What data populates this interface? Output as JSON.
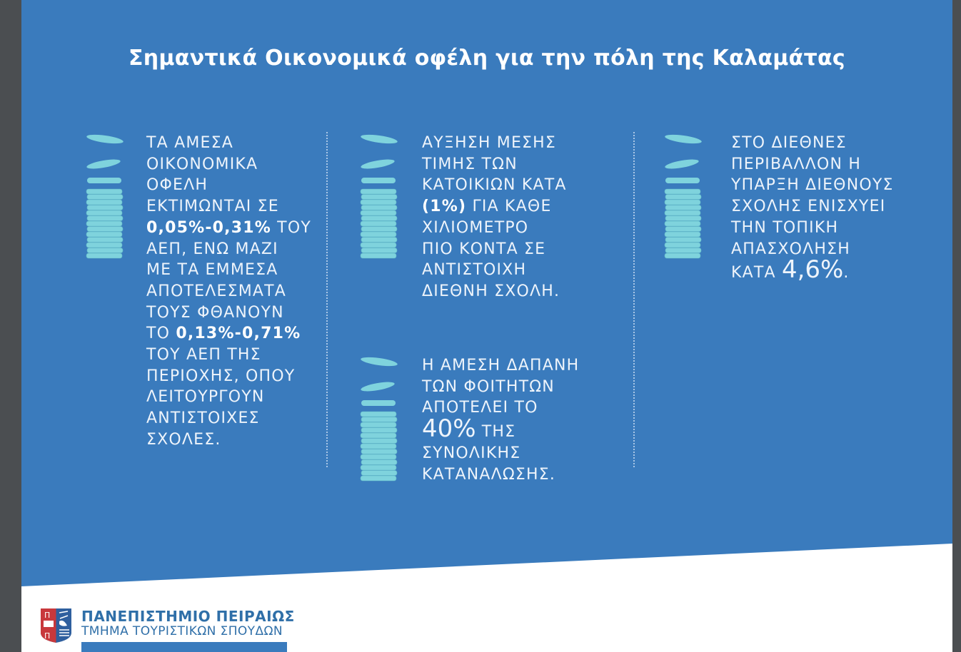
{
  "title": "Σημαντικά Οικονομικά οφέλη για την πόλη της Καλαμάτας",
  "colors": {
    "background_blue": "#3a7bbd",
    "coin": "#7fd3dd",
    "logo_red": "#c8383c",
    "logo_blue": "#2f5f9e"
  },
  "blocks": [
    {
      "icon": "coin-stack-icon",
      "lines": [
        [
          {
            "t": "ΤΑ ΑΜΕΣΑ"
          }
        ],
        [
          {
            "t": "ΟΙΚΟΝΟΜΙΚΑ"
          }
        ],
        [
          {
            "t": "ΟΦΕΛΗ"
          }
        ],
        [
          {
            "t": "ΕΚΤΙΜΩΝΤΑΙ ΣΕ"
          }
        ],
        [
          {
            "t": "0,05%-0,31%",
            "b": true
          },
          {
            "t": " ΤΟΥ"
          }
        ],
        [
          {
            "t": "ΑΕΠ, ΕΝΩ ΜΑΖΙ"
          }
        ],
        [
          {
            "t": "ΜΕ ΤΑ ΕΜΜΕΣΑ"
          }
        ],
        [
          {
            "t": "ΑΠΟΤΕΛΕΣΜΑΤΑ"
          }
        ],
        [
          {
            "t": "ΤΟΥΣ ΦΘΑΝΟΥΝ"
          }
        ],
        [
          {
            "t": "ΤΟ "
          },
          {
            "t": "0,13%-0,71%",
            "b": true
          }
        ],
        [
          {
            "t": "ΤΟΥ ΑΕΠ ΤΗΣ"
          }
        ],
        [
          {
            "t": "ΠΕΡΙΟΧΗΣ, ΟΠΟΥ"
          }
        ],
        [
          {
            "t": "ΛΕΙΤΟΥΡΓΟΥΝ"
          }
        ],
        [
          {
            "t": "ΑΝΤΙΣΤΟΙΧΕΣ"
          }
        ],
        [
          {
            "t": "ΣΧΟΛΕΣ."
          }
        ]
      ]
    },
    {
      "icon": "coin-stack-icon",
      "lines": [
        [
          {
            "t": "ΑΥΞΗΣΗ ΜΕΣΗΣ"
          }
        ],
        [
          {
            "t": "ΤΙΜΗΣ ΤΩΝ"
          }
        ],
        [
          {
            "t": "ΚΑΤΟΙΚΙΩΝ ΚΑΤΑ"
          }
        ],
        [
          {
            "t": "(1%)",
            "b": true
          },
          {
            "t": " ΓΙΑ ΚΑΘΕ"
          }
        ],
        [
          {
            "t": "ΧΙΛΙΟΜΕΤΡΟ"
          }
        ],
        [
          {
            "t": "ΠΙΟ ΚΟΝΤΑ ΣΕ"
          }
        ],
        [
          {
            "t": "ΑΝΤΙΣΤΟΙΧΗ"
          }
        ],
        [
          {
            "t": "ΔΙΕΘΝΗ ΣΧΟΛΗ."
          }
        ]
      ]
    },
    {
      "icon": "coin-stack-icon",
      "lines": [
        [
          {
            "t": "Η ΑΜΕΣΗ ΔΑΠΑΝΗ"
          }
        ],
        [
          {
            "t": "ΤΩΝ ΦΟΙΤΗΤΩΝ"
          }
        ],
        [
          {
            "t": "ΑΠΟΤΕΛΕΙ ΤΟ"
          }
        ],
        [
          {
            "t": "40%",
            "big": true
          },
          {
            "t": " ΤΗΣ"
          }
        ],
        [
          {
            "t": "ΣΥΝΟΛΙΚΗΣ"
          }
        ],
        [
          {
            "t": "ΚΑΤΑΝΑΛΩΣΗΣ."
          }
        ]
      ]
    },
    {
      "icon": "coin-stack-icon",
      "lines": [
        [
          {
            "t": "ΣΤΟ ΔΙΕΘΝΕΣ"
          }
        ],
        [
          {
            "t": "ΠΕΡΙΒΑΛΛΟΝ Η"
          }
        ],
        [
          {
            "t": "ΥΠΑΡΞΗ ΔΙΕΘΝΟΥΣ"
          }
        ],
        [
          {
            "t": "ΣΧΟΛΗΣ ΕΝΙΣΧΥΕΙ"
          }
        ],
        [
          {
            "t": "ΤΗΝ ΤΟΠΙΚΗ"
          }
        ],
        [
          {
            "t": "ΑΠΑΣΧΟΛΗΣΗ"
          }
        ],
        [
          {
            "t": "ΚΑΤΑ "
          },
          {
            "t": "4,6%",
            "big": true
          },
          {
            "t": "."
          }
        ]
      ]
    }
  ],
  "footer": {
    "university": "ΠΑΝΕΠΙΣΤΗΜΙΟ ΠΕΙΡΑΙΩΣ",
    "department": "ΤΜΗΜΑ ΤΟΥΡΙΣΤΙΚΩΝ ΣΠΟΥΔΩΝ",
    "logo": "university-of-piraeus-crest"
  }
}
